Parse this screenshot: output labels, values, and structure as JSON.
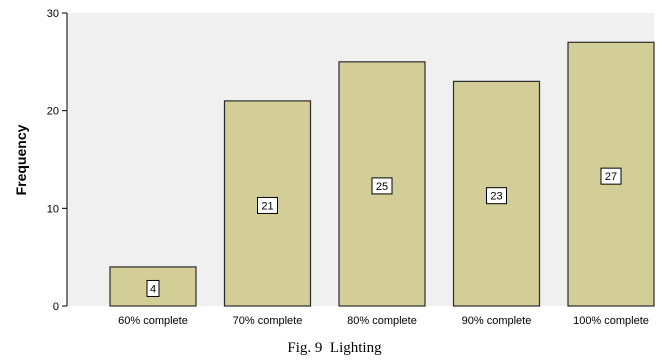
{
  "caption": "Fig. 9  Lighting",
  "colors": {
    "plot_bg": "#f0f0f0",
    "bar_fill": "#d3ce97",
    "bar_stroke": "#2b2b2b"
  },
  "chart_data": {
    "type": "bar",
    "categories": [
      "60% complete",
      "70% complete",
      "80% complete",
      "90% complete",
      "100% complete"
    ],
    "values": [
      4,
      21,
      25,
      23,
      27
    ],
    "data_labels": [
      "4",
      "21",
      "25",
      "23",
      "27"
    ],
    "ylabel": "Frequency",
    "xlabel": "",
    "ylim": [
      0,
      30
    ],
    "yticks": [
      0,
      10,
      20,
      30
    ],
    "grid": false,
    "legend": "none"
  }
}
